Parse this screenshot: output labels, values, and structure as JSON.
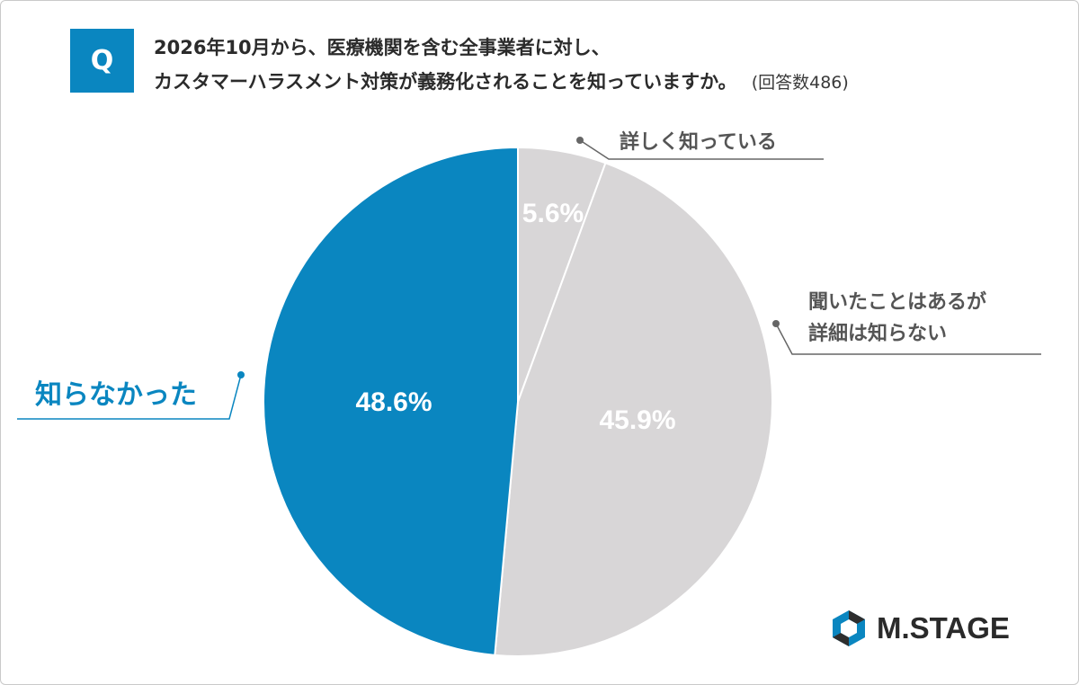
{
  "question": {
    "badge": "Q",
    "line1": "2026年10月から、医療機関を含む全事業者に対し、",
    "line2": "カスタマーハラスメント対策が義務化されることを知っていますか。",
    "count": "(回答数486)"
  },
  "chart_data": {
    "type": "pie",
    "start_angle_deg": 0,
    "direction": "clockwise",
    "slices": [
      {
        "label": "詳しく知っている",
        "value": 5.6,
        "display": "5.6%",
        "color": "#d8d6d7"
      },
      {
        "label": "聞いたことはあるが詳細は知らない",
        "label_lines": [
          "聞いたことはあるが",
          "詳細は知らない"
        ],
        "value": 45.9,
        "display": "45.9%",
        "color": "#d8d6d7"
      },
      {
        "label": "知らなかった",
        "value": 48.6,
        "display": "48.6%",
        "color": "#0a86c0"
      }
    ],
    "colors": {
      "label_gray": "#555555",
      "accent": "#0a86c0",
      "value_text": "#ffffff"
    }
  },
  "logo": {
    "text": "M.STAGE",
    "icon": "m-stage-logo-icon"
  }
}
